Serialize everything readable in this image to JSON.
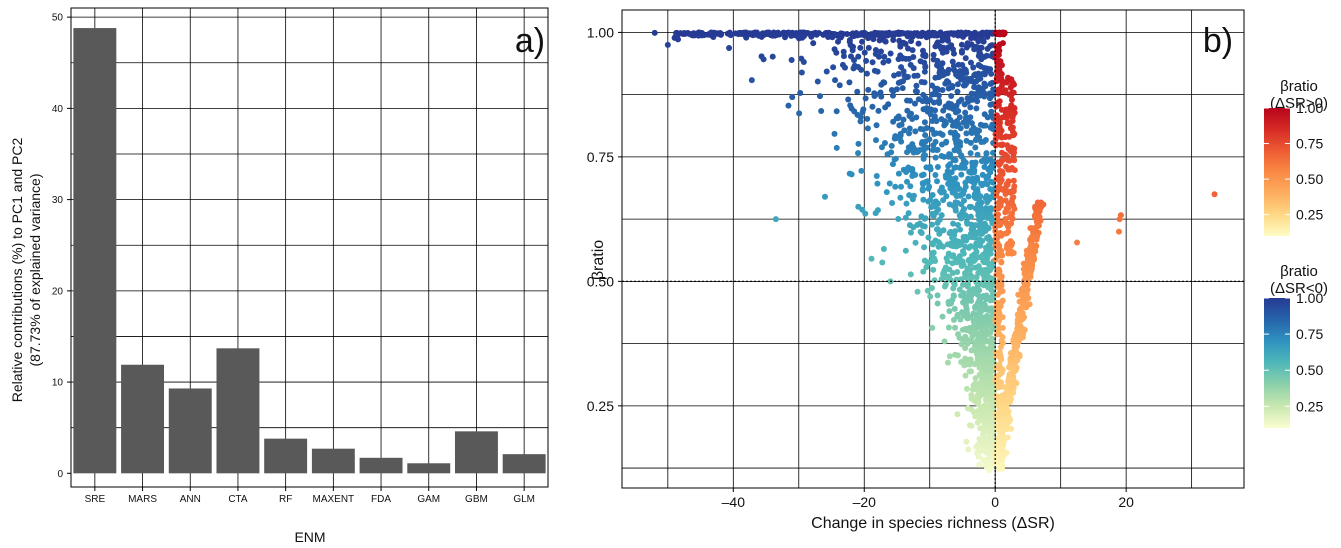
{
  "panel_a": {
    "chart_data": {
      "type": "bar",
      "title": "",
      "panel_label": "a)",
      "xlabel": "ENM",
      "ylabel_line1": "Relative contributions (%) to PC1 and PC2",
      "ylabel_line2": "(87.73% of explained variance)",
      "categories": [
        "SRE",
        "MARS",
        "ANN",
        "CTA",
        "RF",
        "MAXENT",
        "FDA",
        "GAM",
        "GBM",
        "GLM"
      ],
      "values": [
        48.8,
        11.9,
        9.3,
        13.7,
        3.8,
        2.7,
        1.7,
        1.1,
        4.6,
        2.1
      ],
      "ylim": [
        -1.5,
        51
      ],
      "yticks": [
        0,
        10,
        20,
        30,
        40,
        50
      ],
      "bar_color": "#595959",
      "grid": true
    }
  },
  "panel_b": {
    "chart_data": {
      "type": "scatter",
      "panel_label": "b)",
      "xlabel": "Change in species richness (ΔSR)",
      "ylabel": "βratio",
      "xlim": [
        -57,
        38
      ],
      "ylim": [
        0.085,
        1.045
      ],
      "xticks": [
        -40,
        -20,
        0,
        20
      ],
      "yticks": [
        0.25,
        0.5,
        0.75,
        1.0
      ],
      "reference_lines": {
        "x": 0,
        "y": 0.5
      },
      "grid": true,
      "outlier_points": [
        {
          "x": 33.5,
          "y": 0.675
        },
        {
          "x": 19.2,
          "y": 0.633
        },
        {
          "x": 19.0,
          "y": 0.625
        },
        {
          "x": 18.9,
          "y": 0.6
        },
        {
          "x": 12.5,
          "y": 0.578
        },
        {
          "x": -50.0,
          "y": 0.975
        },
        {
          "x": -52.0,
          "y": 0.999
        },
        {
          "x": -31.0,
          "y": 0.87
        },
        {
          "x": -33.5,
          "y": 0.625
        },
        {
          "x": -26.0,
          "y": 0.67
        },
        {
          "x": -17.0,
          "y": 0.565
        },
        {
          "x": -16.0,
          "y": 0.5
        }
      ],
      "legends": [
        {
          "title": "βratio",
          "subtitle": "(ΔSR>0)",
          "ticks": [
            "1.00",
            "0.75",
            "0.50",
            "0.25"
          ],
          "colors": [
            "#fefcc4",
            "#fed886",
            "#fdae5f",
            "#f98a45",
            "#ee5b33",
            "#d62a25",
            "#b8051d"
          ]
        },
        {
          "title": "βratio",
          "subtitle": "(ΔSR<0)",
          "ticks": [
            "1.00",
            "0.75",
            "0.50",
            "0.25"
          ],
          "colors": [
            "#fbfdd0",
            "#c9e8b0",
            "#8dd0aa",
            "#4fb8b8",
            "#2f93c0",
            "#2664aa",
            "#263a94"
          ]
        }
      ],
      "placement": "right"
    }
  }
}
